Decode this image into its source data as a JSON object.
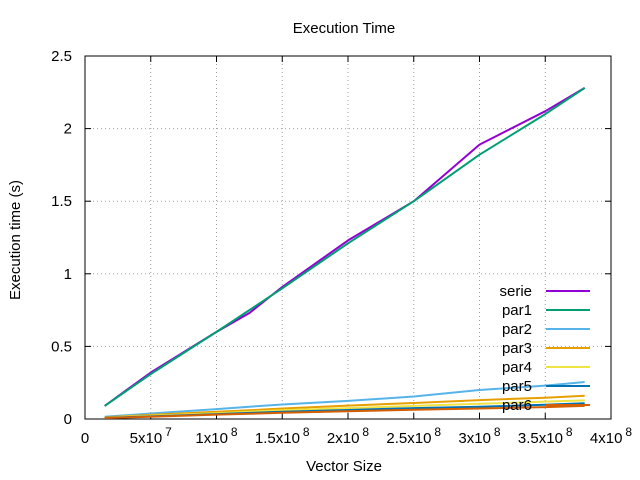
{
  "chart_data": {
    "type": "line",
    "title": "Execution Time",
    "xlabel": "Vector Size",
    "ylabel": "Execution time (s)",
    "xlim": [
      0,
      400000000
    ],
    "ylim": [
      0,
      2.5
    ],
    "grid": true,
    "legend_position": "bottom-right",
    "x_ticks": [
      {
        "value": 0,
        "mantissa": "0",
        "exponent": ""
      },
      {
        "value": 50000000,
        "mantissa": "5x10",
        "exponent": "7"
      },
      {
        "value": 100000000,
        "mantissa": "1x10",
        "exponent": "8"
      },
      {
        "value": 150000000,
        "mantissa": "1.5x10",
        "exponent": "8"
      },
      {
        "value": 200000000,
        "mantissa": "2x10",
        "exponent": "8"
      },
      {
        "value": 250000000,
        "mantissa": "2.5x10",
        "exponent": "8"
      },
      {
        "value": 300000000,
        "mantissa": "3x10",
        "exponent": "8"
      },
      {
        "value": 350000000,
        "mantissa": "3.5x10",
        "exponent": "8"
      },
      {
        "value": 400000000,
        "mantissa": "4x10",
        "exponent": "8"
      }
    ],
    "y_ticks": [
      {
        "value": 0,
        "label": "0"
      },
      {
        "value": 0.5,
        "label": "0.5"
      },
      {
        "value": 1,
        "label": "1"
      },
      {
        "value": 1.5,
        "label": "1.5"
      },
      {
        "value": 2,
        "label": "2"
      },
      {
        "value": 2.5,
        "label": "2.5"
      }
    ],
    "x": [
      15000000,
      50000000,
      100000000,
      125000000,
      150000000,
      200000000,
      250000000,
      300000000,
      350000000,
      380000000
    ],
    "series": [
      {
        "name": "serie",
        "color": "#9400d3",
        "values": [
          0.09,
          0.32,
          0.6,
          0.73,
          0.91,
          1.23,
          1.5,
          1.89,
          2.12,
          2.28
        ]
      },
      {
        "name": "par1",
        "color": "#009e73",
        "values": [
          0.09,
          0.31,
          0.6,
          0.75,
          0.9,
          1.21,
          1.5,
          1.82,
          2.1,
          2.28
        ]
      },
      {
        "name": "par2",
        "color": "#56b4e9",
        "values": [
          0.015,
          0.038,
          0.068,
          0.085,
          0.1,
          0.125,
          0.155,
          0.2,
          0.23,
          0.255
        ]
      },
      {
        "name": "par3",
        "color": "#e69f00",
        "values": [
          0.012,
          0.028,
          0.05,
          0.06,
          0.072,
          0.092,
          0.11,
          0.13,
          0.147,
          0.16
        ]
      },
      {
        "name": "par4",
        "color": "#f0e442",
        "values": [
          0.01,
          0.022,
          0.04,
          0.05,
          0.06,
          0.075,
          0.09,
          0.105,
          0.12,
          0.128
        ]
      },
      {
        "name": "par5",
        "color": "#0072b2",
        "values": [
          0.008,
          0.018,
          0.034,
          0.042,
          0.05,
          0.062,
          0.075,
          0.085,
          0.098,
          0.108
        ]
      },
      {
        "name": "par6",
        "color": "#d55e00",
        "values": [
          0.007,
          0.016,
          0.03,
          0.036,
          0.043,
          0.053,
          0.064,
          0.072,
          0.082,
          0.09
        ]
      }
    ]
  }
}
